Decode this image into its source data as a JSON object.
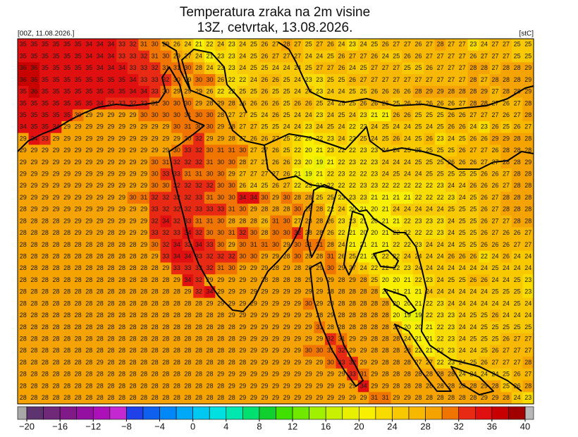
{
  "header": {
    "title_line1": "Temperatura zraka na 2m visine",
    "title_line2": "13Z, cetvrtak, 13.08.2026.",
    "left_label": "[00Z, 11.08.2026.]",
    "right_label": "[stC]"
  },
  "grid": {
    "rows": [
      [
        35,
        35,
        35,
        35,
        35,
        35,
        34,
        34,
        34,
        33,
        32,
        31,
        30,
        29,
        26,
        24,
        21,
        22,
        24,
        23,
        24,
        25,
        26,
        27,
        28,
        27,
        25,
        27,
        26,
        24,
        23,
        24,
        25,
        26,
        27,
        27,
        26,
        27,
        28,
        27,
        27,
        23,
        24,
        27,
        27,
        25,
        25
      ],
      [
        35,
        35,
        35,
        35,
        35,
        35,
        34,
        34,
        34,
        33,
        33,
        32,
        31,
        30,
        29,
        27,
        24,
        21,
        23,
        23,
        24,
        25,
        26,
        27,
        27,
        27,
        24,
        24,
        25,
        26,
        27,
        27,
        26,
        24,
        25,
        26,
        26,
        27,
        27,
        27,
        27,
        26,
        27,
        27,
        27,
        25,
        25
      ],
      [
        36,
        36,
        35,
        35,
        35,
        35,
        35,
        34,
        34,
        34,
        33,
        33,
        32,
        31,
        31,
        30,
        28,
        24,
        23,
        23,
        24,
        25,
        25,
        24,
        24,
        24,
        25,
        27,
        27,
        26,
        24,
        25,
        27,
        27,
        27,
        25,
        25,
        26,
        27,
        27,
        27,
        28,
        28,
        27,
        28,
        28,
        29
      ],
      [
        36,
        36,
        35,
        35,
        35,
        35,
        35,
        35,
        35,
        35,
        34,
        33,
        33,
        32,
        30,
        29,
        30,
        30,
        26,
        22,
        22,
        24,
        26,
        26,
        25,
        24,
        23,
        23,
        25,
        25,
        26,
        27,
        27,
        27,
        27,
        27,
        27,
        27,
        27,
        27,
        27,
        28,
        27,
        28,
        28,
        28,
        29
      ],
      [
        35,
        36,
        35,
        35,
        35,
        35,
        35,
        35,
        35,
        35,
        34,
        34,
        33,
        30,
        29,
        29,
        29,
        26,
        22,
        22,
        25,
        25,
        26,
        25,
        25,
        24,
        24,
        23,
        24,
        24,
        25,
        25,
        26,
        26,
        26,
        26,
        28,
        29,
        29,
        28,
        28,
        28,
        29,
        27,
        28,
        28,
        29
      ],
      [
        35,
        35,
        35,
        35,
        35,
        35,
        35,
        34,
        33,
        33,
        32,
        32,
        31,
        30,
        30,
        30,
        29,
        28,
        29,
        28,
        26,
        26,
        26,
        26,
        25,
        26,
        26,
        25,
        24,
        25,
        25,
        26,
        26,
        26,
        25,
        26,
        26,
        26,
        26,
        26,
        27,
        28,
        28,
        27,
        26,
        27,
        28
      ],
      [
        35,
        35,
        35,
        35,
        35,
        30,
        29,
        29,
        29,
        29,
        29,
        30,
        30,
        30,
        30,
        31,
        30,
        30,
        28,
        27,
        27,
        25,
        24,
        26,
        25,
        24,
        24,
        23,
        24,
        25,
        24,
        23,
        21,
        21,
        26,
        26,
        25,
        25,
        25,
        26,
        26,
        27,
        27,
        27,
        26,
        27,
        28
      ],
      [
        34,
        35,
        35,
        34,
        29,
        29,
        29,
        29,
        29,
        29,
        29,
        29,
        29,
        29,
        30,
        31,
        30,
        30,
        29,
        28,
        27,
        27,
        25,
        25,
        24,
        24,
        23,
        24,
        25,
        24,
        22,
        23,
        24,
        25,
        24,
        24,
        25,
        24,
        25,
        26,
        26,
        24,
        23,
        26,
        25,
        26,
        27
      ],
      [
        29,
        34,
        33,
        29,
        29,
        29,
        29,
        29,
        29,
        29,
        29,
        29,
        29,
        29,
        29,
        30,
        32,
        29,
        29,
        28,
        27,
        26,
        26,
        27,
        25,
        22,
        20,
        22,
        23,
        24,
        23,
        25,
        24,
        25,
        26,
        24,
        25,
        26,
        23,
        24,
        25,
        26,
        26,
        29,
        29,
        28,
        28
      ],
      [
        29,
        29,
        29,
        29,
        29,
        29,
        29,
        29,
        29,
        29,
        29,
        29,
        29,
        29,
        30,
        33,
        32,
        30,
        31,
        31,
        30,
        27,
        27,
        26,
        25,
        22,
        20,
        21,
        23,
        22,
        22,
        23,
        23,
        24,
        24,
        25,
        25,
        25,
        25,
        25,
        26,
        27,
        27,
        26,
        28,
        28,
        28
      ],
      [
        29,
        29,
        29,
        29,
        29,
        29,
        29,
        29,
        29,
        29,
        29,
        29,
        30,
        31,
        32,
        32,
        32,
        31,
        30,
        30,
        28,
        27,
        27,
        26,
        26,
        23,
        20,
        19,
        21,
        22,
        23,
        22,
        23,
        24,
        24,
        24,
        25,
        25,
        25,
        26,
        26,
        26,
        27,
        27,
        28,
        28,
        29
      ],
      [
        29,
        29,
        29,
        29,
        29,
        29,
        29,
        29,
        29,
        29,
        29,
        29,
        30,
        33,
        33,
        31,
        31,
        30,
        30,
        29,
        27,
        27,
        27,
        27,
        26,
        21,
        19,
        21,
        22,
        23,
        22,
        22,
        23,
        24,
        25,
        24,
        24,
        25,
        25,
        25,
        25,
        25,
        26,
        26,
        27,
        28,
        28
      ],
      [
        29,
        29,
        29,
        29,
        29,
        29,
        29,
        29,
        29,
        29,
        29,
        29,
        30,
        30,
        32,
        32,
        32,
        32,
        30,
        30,
        26,
        24,
        25,
        26,
        27,
        22,
        23,
        21,
        22,
        22,
        22,
        23,
        23,
        22,
        22,
        22,
        22,
        22,
        23,
        24,
        24,
        26,
        26,
        26,
        27,
        28,
        28
      ],
      [
        29,
        29,
        29,
        29,
        29,
        29,
        29,
        29,
        29,
        29,
        30,
        31,
        32,
        32,
        32,
        32,
        33,
        31,
        30,
        30,
        34,
        34,
        30,
        29,
        30,
        28,
        28,
        25,
        25,
        23,
        23,
        23,
        21,
        21,
        21,
        21,
        22,
        22,
        22,
        23,
        24,
        25,
        26,
        27,
        28,
        28,
        28
      ],
      [
        28,
        29,
        29,
        29,
        29,
        29,
        29,
        29,
        29,
        29,
        29,
        29,
        33,
        32,
        32,
        32,
        33,
        33,
        33,
        31,
        30,
        29,
        28,
        28,
        28,
        30,
        28,
        28,
        22,
        24,
        20,
        21,
        20,
        21,
        24,
        24,
        24,
        24,
        24,
        25,
        25,
        25,
        26,
        27,
        28,
        28,
        28
      ],
      [
        28,
        28,
        28,
        28,
        29,
        29,
        29,
        29,
        29,
        29,
        29,
        29,
        32,
        34,
        32,
        33,
        31,
        31,
        30,
        28,
        28,
        28,
        26,
        31,
        30,
        27,
        28,
        28,
        26,
        23,
        23,
        21,
        20,
        21,
        21,
        22,
        23,
        23,
        23,
        24,
        25,
        25,
        26,
        27,
        27,
        28,
        28
      ],
      [
        28,
        28,
        28,
        28,
        28,
        29,
        29,
        29,
        28,
        29,
        29,
        29,
        33,
        32,
        33,
        34,
        32,
        30,
        30,
        31,
        32,
        30,
        28,
        30,
        30,
        32,
        28,
        28,
        26,
        22,
        21,
        20,
        20,
        21,
        22,
        22,
        22,
        22,
        23,
        24,
        25,
        25,
        26,
        27,
        26,
        26,
        27
      ],
      [
        28,
        28,
        28,
        28,
        28,
        28,
        28,
        28,
        28,
        28,
        28,
        29,
        30,
        32,
        34,
        32,
        34,
        33,
        30,
        29,
        30,
        31,
        31,
        30,
        29,
        30,
        31,
        31,
        28,
        24,
        21,
        21,
        21,
        21,
        22,
        22,
        23,
        24,
        24,
        24,
        25,
        25,
        26,
        26,
        26,
        27,
        27
      ],
      [
        28,
        28,
        28,
        28,
        28,
        28,
        28,
        28,
        28,
        28,
        28,
        28,
        29,
        33,
        34,
        34,
        33,
        32,
        32,
        32,
        30,
        30,
        29,
        29,
        28,
        30,
        28,
        28,
        31,
        26,
        25,
        21,
        21,
        22,
        22,
        24,
        24,
        24,
        24,
        26,
        26,
        26,
        22,
        24,
        26,
        24,
        24
      ],
      [
        28,
        28,
        28,
        28,
        28,
        28,
        28,
        28,
        28,
        28,
        28,
        28,
        28,
        29,
        33,
        33,
        33,
        32,
        31,
        30,
        29,
        29,
        29,
        28,
        29,
        28,
        28,
        29,
        30,
        29,
        27,
        24,
        22,
        22,
        22,
        23,
        24,
        24,
        24,
        24,
        24,
        24,
        24,
        25,
        24,
        24,
        24
      ],
      [
        28,
        28,
        28,
        28,
        28,
        28,
        28,
        28,
        28,
        28,
        28,
        28,
        28,
        28,
        29,
        34,
        32,
        29,
        29,
        29,
        29,
        29,
        28,
        28,
        28,
        28,
        29,
        29,
        29,
        28,
        29,
        28,
        25,
        20,
        20,
        21,
        22,
        23,
        24,
        25,
        25,
        26,
        26,
        24,
        24,
        25,
        23
      ],
      [
        28,
        28,
        28,
        28,
        28,
        28,
        28,
        28,
        28,
        28,
        28,
        28,
        28,
        28,
        28,
        29,
        32,
        34,
        29,
        29,
        29,
        29,
        29,
        29,
        29,
        29,
        29,
        29,
        28,
        28,
        28,
        28,
        28,
        21,
        21,
        21,
        21,
        24,
        24,
        24,
        24,
        24,
        24,
        25,
        25,
        25,
        23
      ],
      [
        28,
        28,
        28,
        28,
        28,
        28,
        28,
        28,
        28,
        28,
        28,
        28,
        28,
        28,
        28,
        28,
        28,
        29,
        29,
        29,
        29,
        29,
        29,
        29,
        29,
        29,
        30,
        29,
        28,
        28,
        28,
        28,
        28,
        28,
        20,
        20,
        21,
        22,
        23,
        24,
        24,
        24,
        24,
        24,
        24,
        25,
        24
      ],
      [
        28,
        28,
        28,
        28,
        28,
        28,
        28,
        28,
        28,
        28,
        28,
        28,
        28,
        28,
        28,
        28,
        28,
        28,
        28,
        29,
        29,
        29,
        29,
        29,
        29,
        29,
        29,
        28,
        29,
        28,
        28,
        28,
        28,
        28,
        20,
        19,
        19,
        22,
        23,
        23,
        24,
        25,
        25,
        26,
        24,
        24,
        24
      ],
      [
        28,
        28,
        28,
        28,
        28,
        28,
        28,
        28,
        28,
        28,
        28,
        28,
        28,
        28,
        28,
        28,
        28,
        28,
        28,
        28,
        29,
        29,
        29,
        29,
        29,
        29,
        29,
        31,
        28,
        28,
        28,
        28,
        28,
        28,
        26,
        20,
        20,
        21,
        22,
        23,
        24,
        24,
        25,
        25,
        25,
        25,
        25
      ],
      [
        28,
        28,
        28,
        28,
        28,
        28,
        28,
        28,
        28,
        28,
        28,
        28,
        28,
        28,
        28,
        28,
        28,
        28,
        28,
        28,
        29,
        29,
        29,
        29,
        29,
        29,
        29,
        29,
        32,
        31,
        29,
        29,
        28,
        28,
        28,
        24,
        21,
        21,
        22,
        23,
        24,
        25,
        25,
        25,
        26,
        27,
        27
      ],
      [
        28,
        28,
        28,
        28,
        28,
        28,
        28,
        28,
        28,
        28,
        28,
        28,
        28,
        28,
        28,
        28,
        28,
        28,
        28,
        28,
        29,
        29,
        29,
        29,
        29,
        29,
        30,
        30,
        31,
        32,
        29,
        29,
        28,
        28,
        28,
        28,
        22,
        21,
        22,
        23,
        24,
        24,
        25,
        26,
        27,
        27,
        27
      ],
      [
        28,
        28,
        28,
        28,
        28,
        28,
        28,
        29,
        28,
        28,
        28,
        28,
        28,
        28,
        28,
        28,
        28,
        28,
        28,
        28,
        28,
        29,
        29,
        29,
        29,
        29,
        29,
        29,
        30,
        33,
        32,
        29,
        29,
        28,
        28,
        28,
        27,
        27,
        22,
        23,
        24,
        25,
        26,
        27,
        27,
        27,
        28
      ],
      [
        28,
        28,
        28,
        28,
        28,
        28,
        28,
        28,
        28,
        28,
        28,
        28,
        28,
        28,
        28,
        28,
        28,
        28,
        29,
        29,
        29,
        29,
        29,
        29,
        29,
        29,
        29,
        29,
        29,
        29,
        33,
        31,
        29,
        28,
        28,
        28,
        28,
        28,
        28,
        28,
        24,
        24,
        24,
        24,
        25,
        26,
        27
      ],
      [
        28,
        28,
        28,
        28,
        28,
        28,
        28,
        28,
        28,
        28,
        28,
        28,
        28,
        28,
        28,
        28,
        28,
        28,
        28,
        29,
        29,
        29,
        29,
        29,
        29,
        29,
        29,
        29,
        29,
        29,
        29,
        34,
        29,
        29,
        28,
        28,
        28,
        28,
        28,
        28,
        28,
        28,
        29,
        28,
        25,
        26,
        28
      ],
      [
        28,
        28,
        28,
        28,
        28,
        28,
        28,
        28,
        28,
        28,
        28,
        28,
        28,
        28,
        28,
        28,
        28,
        28,
        28,
        28,
        29,
        29,
        29,
        29,
        29,
        29,
        29,
        29,
        29,
        29,
        29,
        29,
        31,
        31,
        29,
        29,
        28,
        28,
        28,
        28,
        28,
        28,
        29,
        29,
        28,
        24,
        23
      ]
    ]
  },
  "colorbar": {
    "min": -20,
    "max": 40,
    "step": 2,
    "below_color": "#a8a8a8",
    "above_color": "#b8b8b8",
    "colors": [
      "#5e3470",
      "#702878",
      "#801a88",
      "#9410a0",
      "#ac10b8",
      "#c428d0",
      "#2040e8",
      "#1060f0",
      "#0088f8",
      "#00a8f8",
      "#00c8f0",
      "#00e0e0",
      "#00e8b0",
      "#00e070",
      "#10d030",
      "#40e000",
      "#70e800",
      "#a0f000",
      "#c8f000",
      "#e8f000",
      "#f8f000",
      "#f8dc00",
      "#f8c800",
      "#f8b800",
      "#f5a300",
      "#f07400",
      "#e82a14",
      "#e01010",
      "#c80000",
      "#a00000"
    ],
    "ticks": [
      {
        "value": -20,
        "label": "−20"
      },
      {
        "value": -16,
        "label": "−16"
      },
      {
        "value": -12,
        "label": "−12"
      },
      {
        "value": -8,
        "label": "−8"
      },
      {
        "value": -4,
        "label": "−4"
      },
      0,
      4,
      8,
      12,
      16,
      20,
      24,
      28,
      32,
      36,
      40
    ]
  }
}
